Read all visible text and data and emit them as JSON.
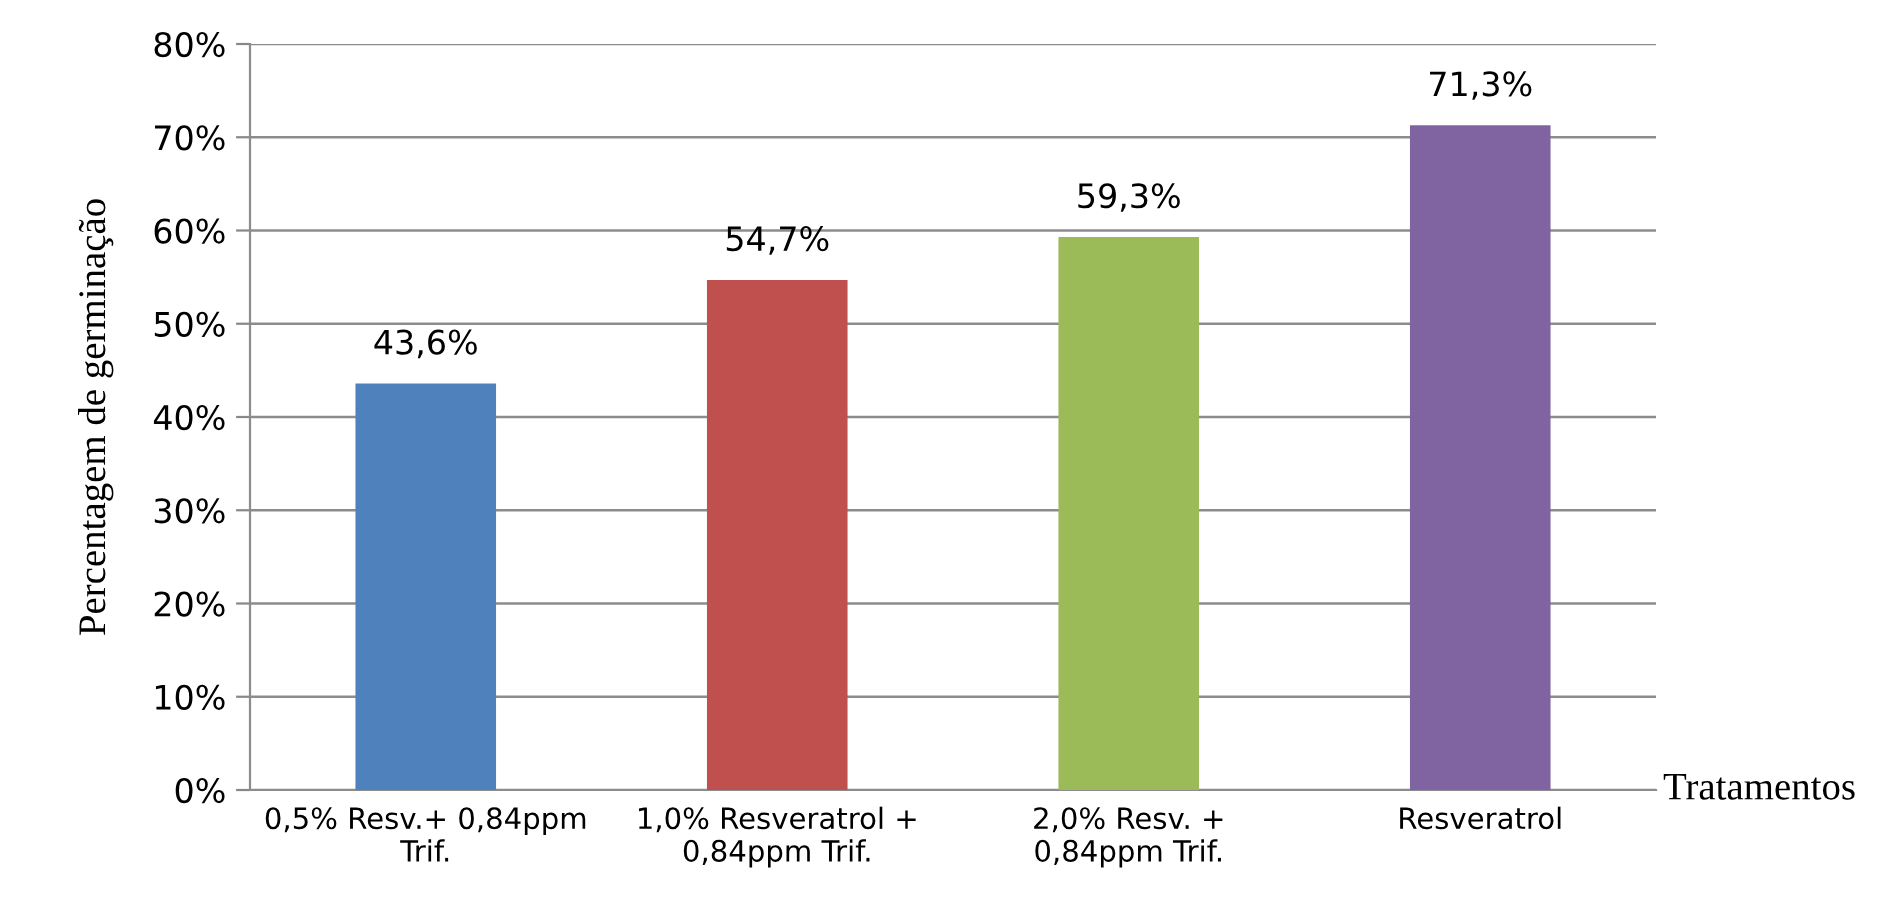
{
  "chart_data": {
    "type": "bar",
    "ylabel": "Percentagem de germinação",
    "xlabel": "Tratamentos",
    "categories": [
      "0,5% Resv.+ 0,84ppm\nTrif.",
      "1,0% Resveratrol +\n0,84ppm Trif.",
      "2,0% Resv. +\n0,84ppm Trif.",
      "Resveratrol"
    ],
    "values": [
      43.6,
      54.7,
      59.3,
      71.3
    ],
    "colors": [
      "#4f81bd",
      "#c0504d",
      "#9bbb59",
      "#8064a2"
    ],
    "value_labels": [
      "43,6%",
      "54,7%",
      "59,3%",
      "71,3%"
    ],
    "ylim": [
      0,
      80
    ],
    "yticks": [
      {
        "value": 0,
        "label": "0%"
      },
      {
        "value": 10,
        "label": "10%"
      },
      {
        "value": 20,
        "label": "20%"
      },
      {
        "value": 30,
        "label": "30%"
      },
      {
        "value": 40,
        "label": "40%"
      },
      {
        "value": 50,
        "label": "50%"
      },
      {
        "value": 60,
        "label": "60%"
      },
      {
        "value": 70,
        "label": "70%"
      },
      {
        "value": 80,
        "label": "80%"
      }
    ],
    "grid": "y"
  }
}
